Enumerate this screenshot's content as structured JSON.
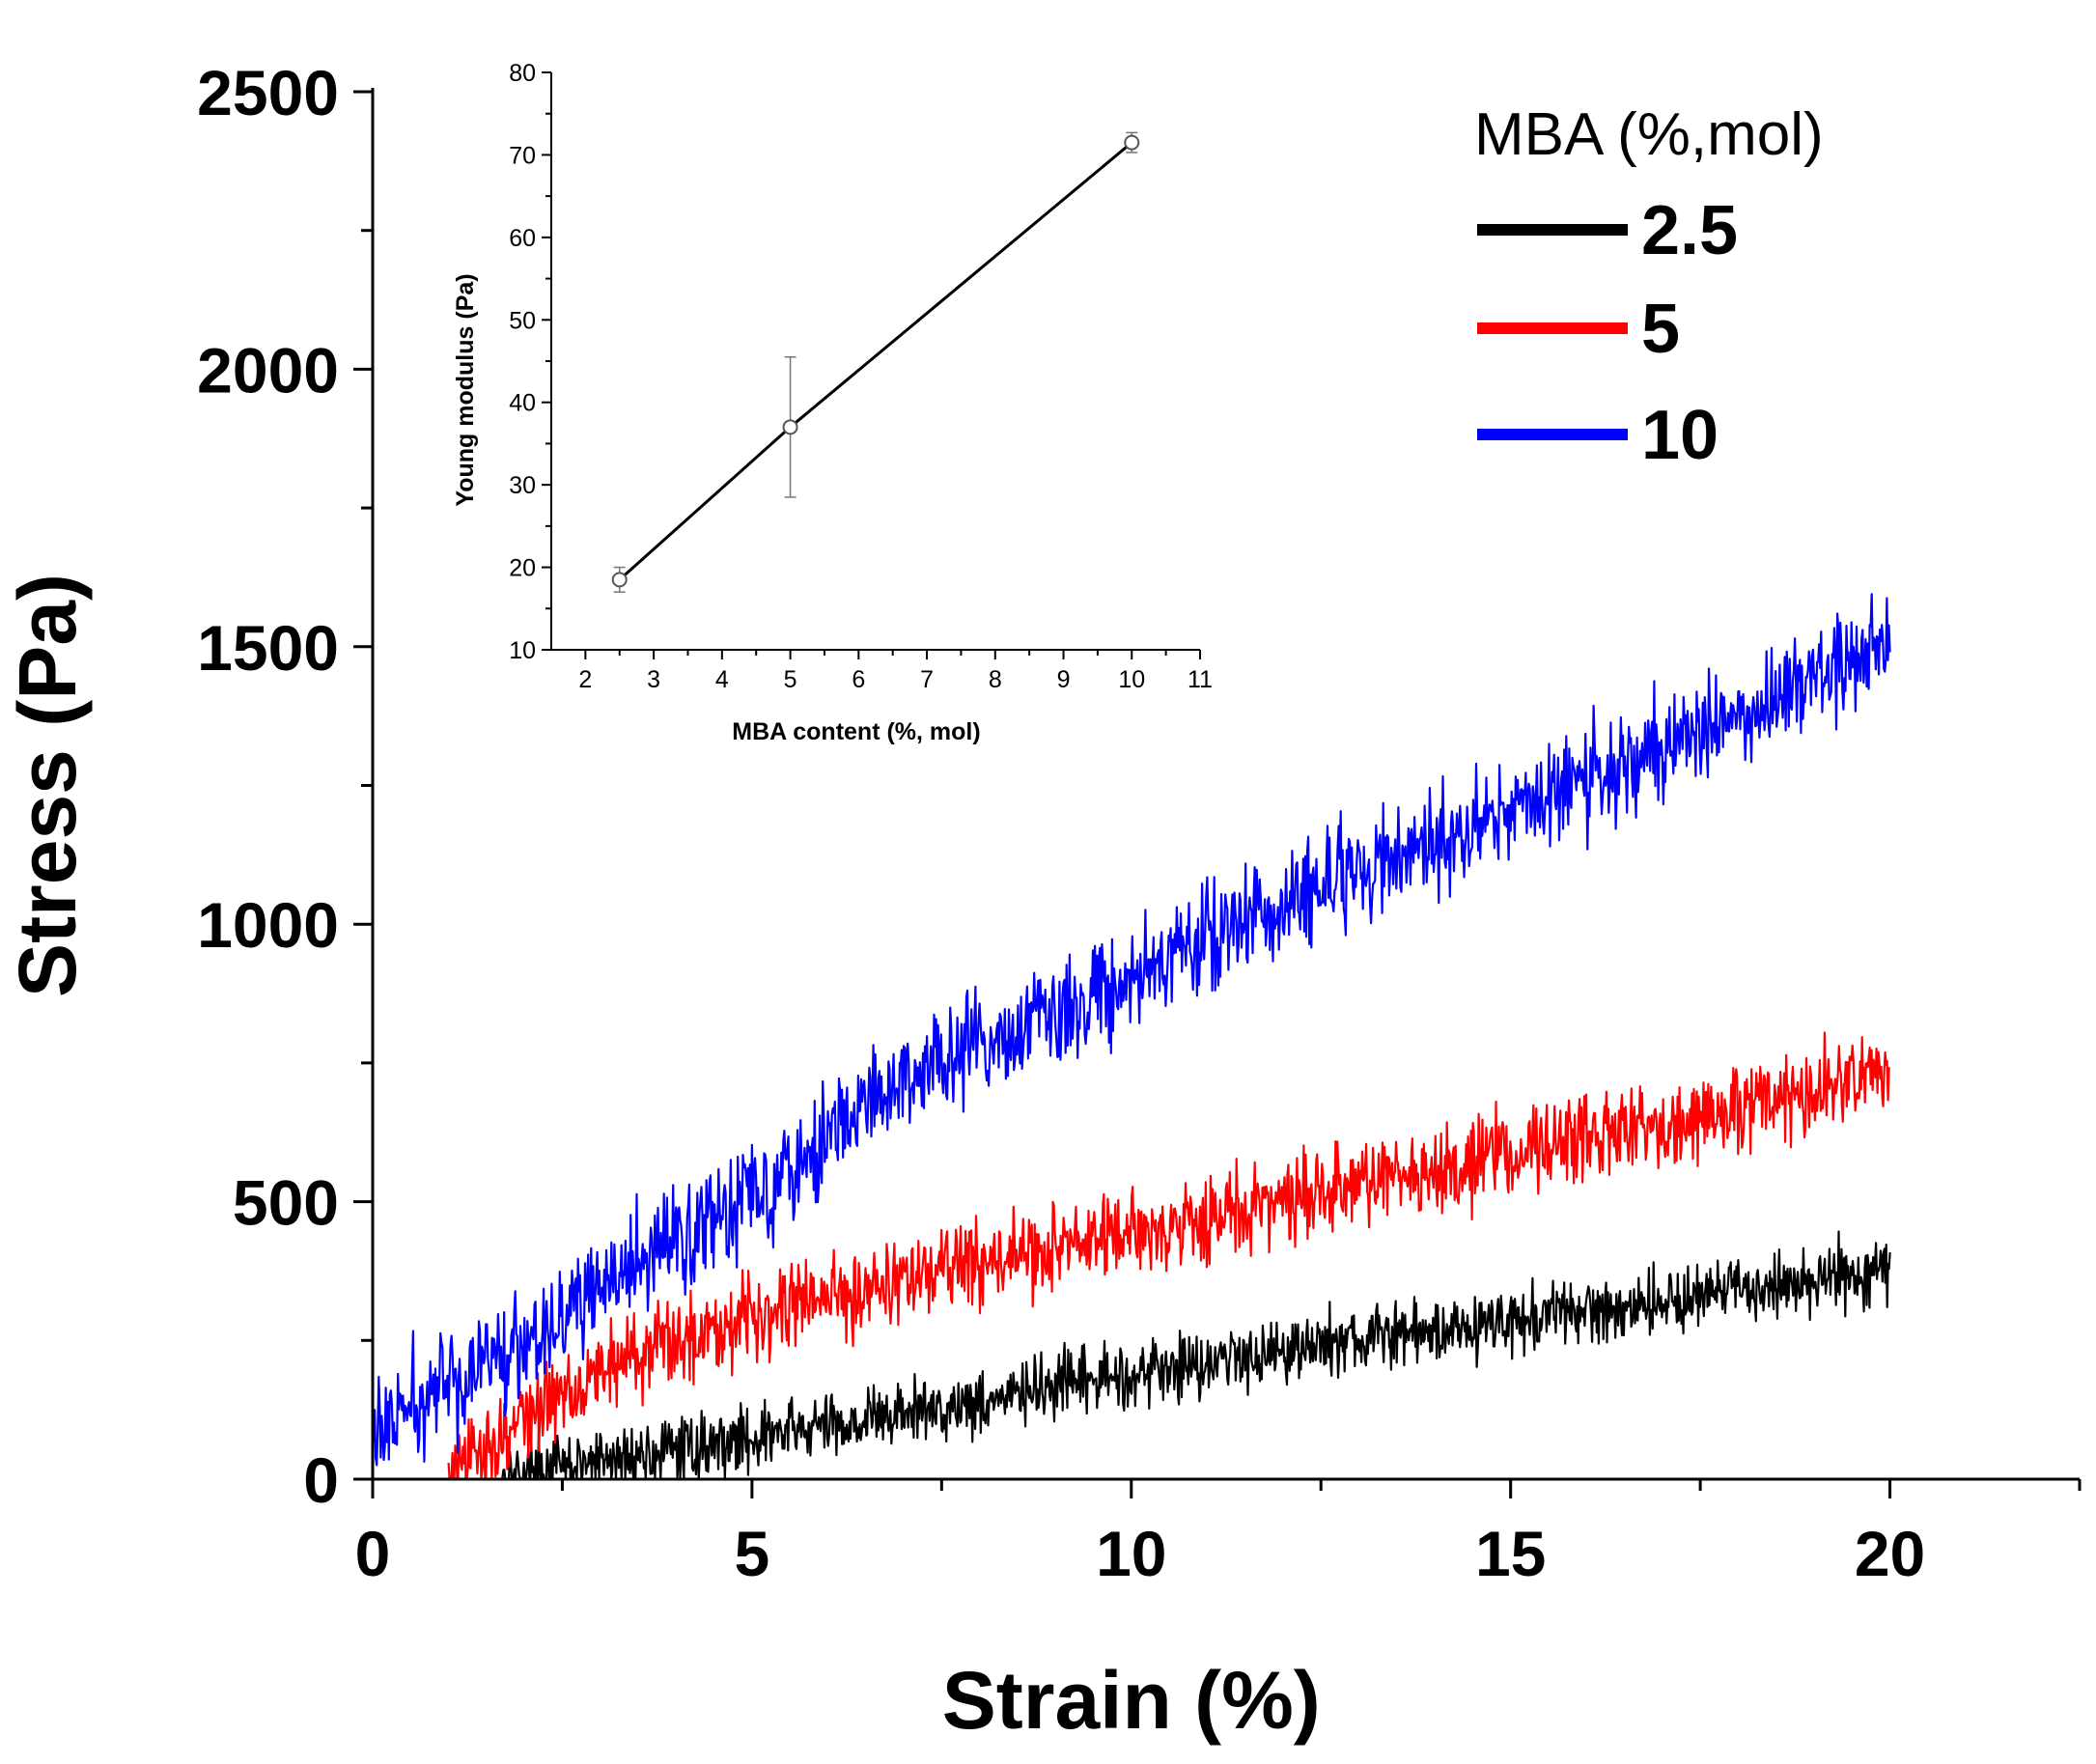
{
  "chart_data": [
    {
      "type": "line",
      "title": "",
      "xlabel": "Strain (%)",
      "ylabel": "Stress (Pa)",
      "xlim": [
        0,
        22.5
      ],
      "ylim": [
        0,
        2500
      ],
      "xticks": [
        "0",
        "5",
        "10",
        "15",
        "20"
      ],
      "yticks": [
        "0",
        "500",
        "1000",
        "1500",
        "2000",
        "2500"
      ],
      "grid": false,
      "legend": {
        "title": "MBA (%,mol)",
        "placement": "top-right"
      },
      "series": [
        {
          "name": "2.5",
          "color": "#000000",
          "noise": 45,
          "x": [
            1.6,
            3,
            5,
            8,
            10,
            12,
            15,
            17.5,
            20
          ],
          "y": [
            0,
            30,
            75,
            140,
            190,
            235,
            285,
            330,
            380
          ]
        },
        {
          "name": "5",
          "color": "#ff0000",
          "noise": 60,
          "x": [
            1.0,
            2,
            3,
            5,
            8,
            10,
            12,
            15,
            17.5,
            20
          ],
          "y": [
            0,
            110,
            200,
            300,
            390,
            440,
            500,
            590,
            650,
            730
          ]
        },
        {
          "name": "10",
          "color": "#0000ff",
          "noise": 75,
          "x": [
            0,
            1,
            3,
            5,
            7,
            10,
            12,
            15,
            17.5,
            20
          ],
          "y": [
            80,
            170,
            340,
            520,
            720,
            900,
            1040,
            1200,
            1350,
            1510
          ]
        }
      ]
    },
    {
      "type": "line",
      "title": "",
      "xlabel": "MBA content (%, mol)",
      "ylabel": "Young modulus (Pa)",
      "xlim": [
        1.5,
        11
      ],
      "ylim": [
        10,
        80
      ],
      "xticks": [
        "2",
        "3",
        "4",
        "5",
        "6",
        "7",
        "8",
        "9",
        "10",
        "11"
      ],
      "yticks": [
        "10",
        "20",
        "30",
        "40",
        "50",
        "60",
        "70",
        "80"
      ],
      "grid": false,
      "series": [
        {
          "color": "#000000",
          "x": [
            2.5,
            5,
            10
          ],
          "y": [
            18.5,
            37,
            71.5
          ],
          "error": [
            1.5,
            8.5,
            1.2
          ]
        }
      ]
    }
  ]
}
